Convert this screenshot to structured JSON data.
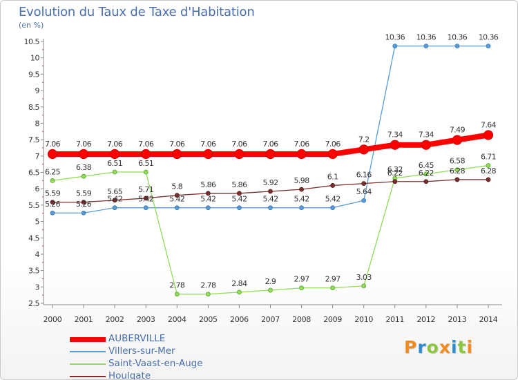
{
  "page": {
    "title": "Evolution du Taux de Taxe d'Habitation",
    "subtitle": "(en %)"
  },
  "chart_data": {
    "type": "line",
    "title": "Evolution du Taux de Taxe d'Habitation",
    "subtitle": "(en %)",
    "xlabel": "",
    "ylabel": "",
    "ylim": [
      2.5,
      10.5
    ],
    "grid": false,
    "legend_position": "bottom-left",
    "x": [
      "2000",
      "2001",
      "2002",
      "2003",
      "2004",
      "2005",
      "2006",
      "2007",
      "2008",
      "2009",
      "2010",
      "2011",
      "2012",
      "2013",
      "2014"
    ],
    "yticks": [
      "2.5",
      "3",
      "3.5",
      "4",
      "4.5",
      "5",
      "5.5",
      "6",
      "6.5",
      "7",
      "7.5",
      "8",
      "8.5",
      "9",
      "9.5",
      "10",
      "10.5"
    ],
    "series": [
      {
        "name": "AUBERVILLE",
        "color": "#ff0000",
        "values": [
          7.06,
          7.06,
          7.06,
          7.06,
          7.06,
          7.06,
          7.06,
          7.06,
          7.06,
          7.06,
          7.2,
          7.34,
          7.34,
          7.49,
          7.64
        ],
        "labels": [
          "7.06",
          "7.06",
          "7.06",
          "7.06",
          "7.06",
          "7.06",
          "7.06",
          "7.06",
          "7.06",
          "7.06",
          "7.2",
          "7.34",
          "7.34",
          "7.49",
          "7.64"
        ]
      },
      {
        "name": "Villers-sur-Mer",
        "color": "#5b9bd5",
        "values": [
          5.26,
          5.26,
          5.42,
          5.42,
          5.42,
          5.42,
          5.42,
          5.42,
          5.42,
          5.42,
          5.64,
          10.36,
          10.36,
          10.36,
          10.36
        ],
        "labels": [
          "5.26",
          "5.26",
          "5.42",
          "5.42",
          "5.42",
          "5.42",
          "5.42",
          "5.42",
          "5.42",
          "5.42",
          "5.64",
          "10.36",
          "10.36",
          "10.36",
          "10.36"
        ]
      },
      {
        "name": "Saint-Vaast-en-Auge",
        "color": "#90dd5a",
        "values": [
          6.25,
          6.38,
          6.51,
          6.51,
          2.78,
          2.78,
          2.84,
          2.9,
          2.97,
          2.97,
          3.03,
          6.32,
          6.45,
          6.58,
          6.71
        ],
        "labels": [
          "6.25",
          "6.38",
          "6.51",
          "6.51",
          "2.78",
          "2.78",
          "2.84",
          "2.9",
          "2.97",
          "2.97",
          "3.03",
          "6.32",
          "6.45",
          "6.58",
          "6.71"
        ]
      },
      {
        "name": "Houlgate",
        "color": "#7a2e2e",
        "values": [
          5.59,
          5.59,
          5.65,
          5.71,
          5.8,
          5.86,
          5.86,
          5.92,
          5.98,
          6.1,
          6.16,
          6.22,
          6.22,
          6.28,
          6.28
        ],
        "labels": [
          "5.59",
          "5.59",
          "5.65",
          "5.71",
          "5.8",
          "5.86",
          "5.86",
          "5.92",
          "5.98",
          "6.1",
          "6.16",
          "6.22",
          "6.22",
          "6.28",
          "6.28"
        ]
      }
    ]
  },
  "legend": {
    "items": [
      {
        "label": "AUBERVILLE",
        "color": "#ff0000"
      },
      {
        "label": "Villers-sur-Mer",
        "color": "#5b9bd5"
      },
      {
        "label": "Saint-Vaast-en-Auge",
        "color": "#90dd5a"
      },
      {
        "label": "Houlgate",
        "color": "#7a2e2e"
      }
    ]
  },
  "logo": {
    "letters": [
      "P",
      "r",
      "o",
      "x",
      "i",
      "t",
      "i"
    ],
    "colors": [
      "#f28c1e",
      "#2e8bd0",
      "#8cc63f",
      "#f28c1e",
      "#2e8bd0",
      "#8cc63f",
      "#f28c1e"
    ]
  }
}
